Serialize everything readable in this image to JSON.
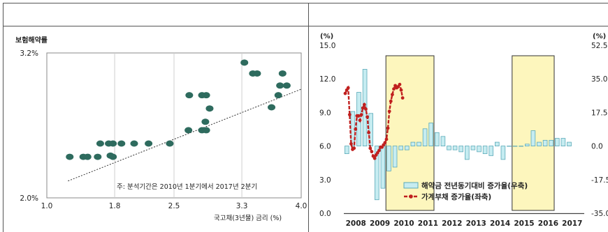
{
  "chart_data": [
    {
      "type": "scatter",
      "title": "",
      "ylabel": "보험해약률",
      "xlabel": "국고채(3년물) 금리 (%)",
      "xlim": [
        1.0,
        4.0
      ],
      "ylim": [
        2.0,
        3.2
      ],
      "x_ticks": [
        "1.0",
        "1.8",
        "2.5",
        "3.3",
        "4.0"
      ],
      "y_ticks": [
        "3.2%",
        "2.0%"
      ],
      "note": "주: 분석기간은 2010년 1분기에서 2017년 2분기",
      "trendline": {
        "x": [
          1.25,
          4.0
        ],
        "y": [
          2.14,
          2.9
        ]
      },
      "points": [
        {
          "x": 1.27,
          "y": 2.34
        },
        {
          "x": 1.43,
          "y": 2.34
        },
        {
          "x": 1.48,
          "y": 2.34
        },
        {
          "x": 1.6,
          "y": 2.34
        },
        {
          "x": 1.63,
          "y": 2.45
        },
        {
          "x": 1.75,
          "y": 2.35
        },
        {
          "x": 1.78,
          "y": 2.34
        },
        {
          "x": 1.73,
          "y": 2.45
        },
        {
          "x": 1.78,
          "y": 2.45
        },
        {
          "x": 1.88,
          "y": 2.45
        },
        {
          "x": 2.03,
          "y": 2.45
        },
        {
          "x": 2.2,
          "y": 2.45
        },
        {
          "x": 2.45,
          "y": 2.45
        },
        {
          "x": 2.67,
          "y": 2.56
        },
        {
          "x": 2.83,
          "y": 2.56
        },
        {
          "x": 2.88,
          "y": 2.56
        },
        {
          "x": 2.87,
          "y": 2.63
        },
        {
          "x": 2.92,
          "y": 2.74
        },
        {
          "x": 2.68,
          "y": 2.85
        },
        {
          "x": 2.83,
          "y": 2.85
        },
        {
          "x": 2.88,
          "y": 2.85
        },
        {
          "x": 3.33,
          "y": 3.12
        },
        {
          "x": 3.43,
          "y": 3.03
        },
        {
          "x": 3.48,
          "y": 3.03
        },
        {
          "x": 3.65,
          "y": 2.75
        },
        {
          "x": 3.73,
          "y": 2.85
        },
        {
          "x": 3.75,
          "y": 2.93
        },
        {
          "x": 3.78,
          "y": 3.03
        },
        {
          "x": 3.83,
          "y": 2.93
        }
      ]
    },
    {
      "type": "bar+line",
      "title": "",
      "left_unit": "(%)",
      "right_unit": "(%)",
      "left_ylim": [
        0.0,
        15.0
      ],
      "right_ylim": [
        -35.0,
        52.5
      ],
      "left_ticks": [
        "15.0",
        "12.0",
        "9.0",
        "6.0",
        "3.0",
        "0.0"
      ],
      "right_ticks": [
        "52.5",
        "35.0",
        "17.5",
        "0.0",
        "-17.5",
        "-35.0"
      ],
      "x_labels": [
        "2008",
        "2009",
        "2010",
        "2011",
        "2012",
        "2013",
        "2014",
        "2015",
        "2016",
        "2017"
      ],
      "x_start": 2008.0,
      "highlight_spans": [
        [
          2009.75,
          2011.75
        ],
        [
          2015.0,
          2016.75
        ]
      ],
      "series": [
        {
          "name": "해약금 전년동기대비 증가율(우축)",
          "kind": "bar",
          "axis": "right",
          "values": [
            -4,
            18,
            28,
            40,
            17,
            -28,
            -22,
            -13,
            -11,
            -2,
            -2,
            2,
            2,
            9,
            12,
            7,
            5,
            -2,
            -2,
            -3,
            -7,
            -2,
            -3,
            -4,
            -5,
            2,
            -7,
            0,
            0,
            0,
            1,
            8,
            2,
            3,
            3,
            4,
            4,
            2
          ]
        },
        {
          "name": "가계부채 증가율(좌축)",
          "kind": "line",
          "axis": "left",
          "values": [
            10.7,
            11.0,
            11.2,
            8.8,
            6.2,
            5.7,
            5.8,
            7.5,
            8.7,
            8.7,
            8.3,
            8.8,
            9.4,
            9.7,
            9.3,
            8.6,
            7.2,
            5.8,
            5.5,
            5.1,
            4.9,
            5.2,
            5.4,
            5.6,
            5.9,
            5.9,
            6.1,
            6.3,
            6.6,
            7.6,
            9.1,
            10.0,
            10.6,
            11.1,
            11.4,
            11.2,
            11.3,
            11.5,
            11.0,
            10.3
          ]
        }
      ]
    }
  ]
}
